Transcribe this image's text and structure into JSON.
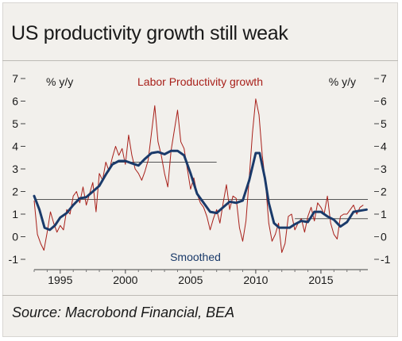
{
  "header": {
    "title": "US productivity growth still weak"
  },
  "footer": {
    "source": "Source: Macrobond Financial, BEA"
  },
  "chart_data": {
    "type": "line",
    "title": "US productivity growth still weak",
    "y_unit_left": "% y/y",
    "y_unit_right": "% y/y",
    "ylim": [
      -1,
      7
    ],
    "xlim": [
      1993,
      2018.6
    ],
    "y_ticks": [
      -1,
      0,
      1,
      2,
      3,
      4,
      5,
      6,
      7
    ],
    "x_ticks": [
      1995,
      2000,
      2005,
      2010,
      2015
    ],
    "grid": false,
    "colors": {
      "raw": "#a8201a",
      "smoothed": "#1a3a6a",
      "trend": "#555555"
    },
    "series": [
      {
        "name": "Labor Productivity growth",
        "points": [
          [
            1993.0,
            1.6
          ],
          [
            1993.25,
            0.1
          ],
          [
            1993.5,
            -0.3
          ],
          [
            1993.75,
            -0.6
          ],
          [
            1994.0,
            0.2
          ],
          [
            1994.25,
            1.1
          ],
          [
            1994.5,
            0.6
          ],
          [
            1994.75,
            0.2
          ],
          [
            1995.0,
            0.5
          ],
          [
            1995.25,
            0.3
          ],
          [
            1995.5,
            1.2
          ],
          [
            1995.75,
            1.0
          ],
          [
            1996.0,
            1.8
          ],
          [
            1996.25,
            2.0
          ],
          [
            1996.5,
            1.5
          ],
          [
            1996.75,
            2.2
          ],
          [
            1997.0,
            1.4
          ],
          [
            1997.25,
            1.9
          ],
          [
            1997.5,
            2.4
          ],
          [
            1997.75,
            1.1
          ],
          [
            1998.0,
            2.8
          ],
          [
            1998.25,
            2.5
          ],
          [
            1998.5,
            3.3
          ],
          [
            1998.75,
            2.9
          ],
          [
            1999.0,
            3.5
          ],
          [
            1999.25,
            4.0
          ],
          [
            1999.5,
            3.6
          ],
          [
            1999.75,
            3.9
          ],
          [
            2000.0,
            3.2
          ],
          [
            2000.25,
            4.5
          ],
          [
            2000.5,
            3.6
          ],
          [
            2000.75,
            3.0
          ],
          [
            2001.0,
            2.8
          ],
          [
            2001.25,
            2.5
          ],
          [
            2001.5,
            2.9
          ],
          [
            2001.75,
            3.4
          ],
          [
            2002.0,
            4.6
          ],
          [
            2002.25,
            5.8
          ],
          [
            2002.5,
            4.2
          ],
          [
            2002.75,
            3.6
          ],
          [
            2003.0,
            2.8
          ],
          [
            2003.25,
            2.2
          ],
          [
            2003.5,
            3.8
          ],
          [
            2003.75,
            4.7
          ],
          [
            2004.0,
            5.6
          ],
          [
            2004.25,
            4.2
          ],
          [
            2004.5,
            3.9
          ],
          [
            2004.75,
            3.0
          ],
          [
            2005.0,
            2.1
          ],
          [
            2005.25,
            2.6
          ],
          [
            2005.5,
            1.9
          ],
          [
            2005.75,
            1.5
          ],
          [
            2006.0,
            1.3
          ],
          [
            2006.25,
            0.9
          ],
          [
            2006.5,
            0.3
          ],
          [
            2006.75,
            0.8
          ],
          [
            2007.0,
            1.2
          ],
          [
            2007.25,
            0.6
          ],
          [
            2007.5,
            1.5
          ],
          [
            2007.75,
            2.3
          ],
          [
            2008.0,
            1.2
          ],
          [
            2008.25,
            1.8
          ],
          [
            2008.5,
            1.7
          ],
          [
            2008.75,
            0.4
          ],
          [
            2009.0,
            -0.2
          ],
          [
            2009.25,
            0.7
          ],
          [
            2009.5,
            2.6
          ],
          [
            2009.75,
            4.6
          ],
          [
            2010.0,
            6.1
          ],
          [
            2010.25,
            5.4
          ],
          [
            2010.5,
            3.6
          ],
          [
            2010.75,
            2.4
          ],
          [
            2011.0,
            0.6
          ],
          [
            2011.25,
            -0.2
          ],
          [
            2011.5,
            0.1
          ],
          [
            2011.75,
            0.6
          ],
          [
            2012.0,
            -0.7
          ],
          [
            2012.25,
            -0.3
          ],
          [
            2012.5,
            0.9
          ],
          [
            2012.75,
            1.0
          ],
          [
            2013.0,
            0.3
          ],
          [
            2013.25,
            0.6
          ],
          [
            2013.5,
            0.8
          ],
          [
            2013.75,
            0.2
          ],
          [
            2014.0,
            0.9
          ],
          [
            2014.25,
            1.3
          ],
          [
            2014.5,
            0.7
          ],
          [
            2014.75,
            1.5
          ],
          [
            2015.0,
            1.3
          ],
          [
            2015.25,
            1.0
          ],
          [
            2015.5,
            1.8
          ],
          [
            2015.75,
            0.6
          ],
          [
            2016.0,
            0.1
          ],
          [
            2016.25,
            -0.1
          ],
          [
            2016.5,
            0.9
          ],
          [
            2016.75,
            1.0
          ],
          [
            2017.0,
            1.0
          ],
          [
            2017.25,
            1.2
          ],
          [
            2017.5,
            1.4
          ],
          [
            2017.75,
            1.0
          ],
          [
            2018.0,
            1.3
          ],
          [
            2018.25,
            1.4
          ]
        ]
      },
      {
        "name": "Smoothed",
        "points": [
          [
            1993.0,
            1.8
          ],
          [
            1993.4,
            1.2
          ],
          [
            1993.8,
            0.4
          ],
          [
            1994.2,
            0.3
          ],
          [
            1994.6,
            0.5
          ],
          [
            1995.0,
            0.85
          ],
          [
            1995.5,
            1.05
          ],
          [
            1996.0,
            1.4
          ],
          [
            1996.5,
            1.7
          ],
          [
            1997.0,
            1.75
          ],
          [
            1997.5,
            2.0
          ],
          [
            1998.0,
            2.25
          ],
          [
            1998.5,
            2.75
          ],
          [
            1999.0,
            3.2
          ],
          [
            1999.5,
            3.35
          ],
          [
            2000.0,
            3.35
          ],
          [
            2000.5,
            3.25
          ],
          [
            2001.0,
            3.15
          ],
          [
            2001.5,
            3.45
          ],
          [
            2002.0,
            3.7
          ],
          [
            2002.5,
            3.75
          ],
          [
            2003.0,
            3.65
          ],
          [
            2003.5,
            3.8
          ],
          [
            2004.0,
            3.8
          ],
          [
            2004.5,
            3.6
          ],
          [
            2005.0,
            2.8
          ],
          [
            2005.5,
            1.9
          ],
          [
            2006.0,
            1.5
          ],
          [
            2006.5,
            1.1
          ],
          [
            2007.0,
            1.05
          ],
          [
            2007.5,
            1.3
          ],
          [
            2008.0,
            1.55
          ],
          [
            2008.5,
            1.5
          ],
          [
            2009.0,
            1.6
          ],
          [
            2009.5,
            2.5
          ],
          [
            2010.0,
            3.7
          ],
          [
            2010.3,
            3.7
          ],
          [
            2010.7,
            2.6
          ],
          [
            2011.0,
            1.5
          ],
          [
            2011.4,
            0.6
          ],
          [
            2011.8,
            0.4
          ],
          [
            2012.2,
            0.4
          ],
          [
            2012.6,
            0.4
          ],
          [
            2013.0,
            0.55
          ],
          [
            2013.5,
            0.7
          ],
          [
            2014.0,
            0.65
          ],
          [
            2014.5,
            1.1
          ],
          [
            2015.0,
            1.1
          ],
          [
            2015.5,
            0.9
          ],
          [
            2016.0,
            0.75
          ],
          [
            2016.5,
            0.45
          ],
          [
            2017.0,
            0.65
          ],
          [
            2017.5,
            1.1
          ],
          [
            2018.0,
            1.15
          ],
          [
            2018.5,
            1.2
          ]
        ]
      }
    ],
    "trend_lines": [
      {
        "x0": 1993.0,
        "x1": 2018.6,
        "y": 1.65
      },
      {
        "x0": 1999.0,
        "x1": 2007.0,
        "y": 3.3
      },
      {
        "x0": 2013.0,
        "x1": 2018.6,
        "y": 0.8
      }
    ]
  }
}
